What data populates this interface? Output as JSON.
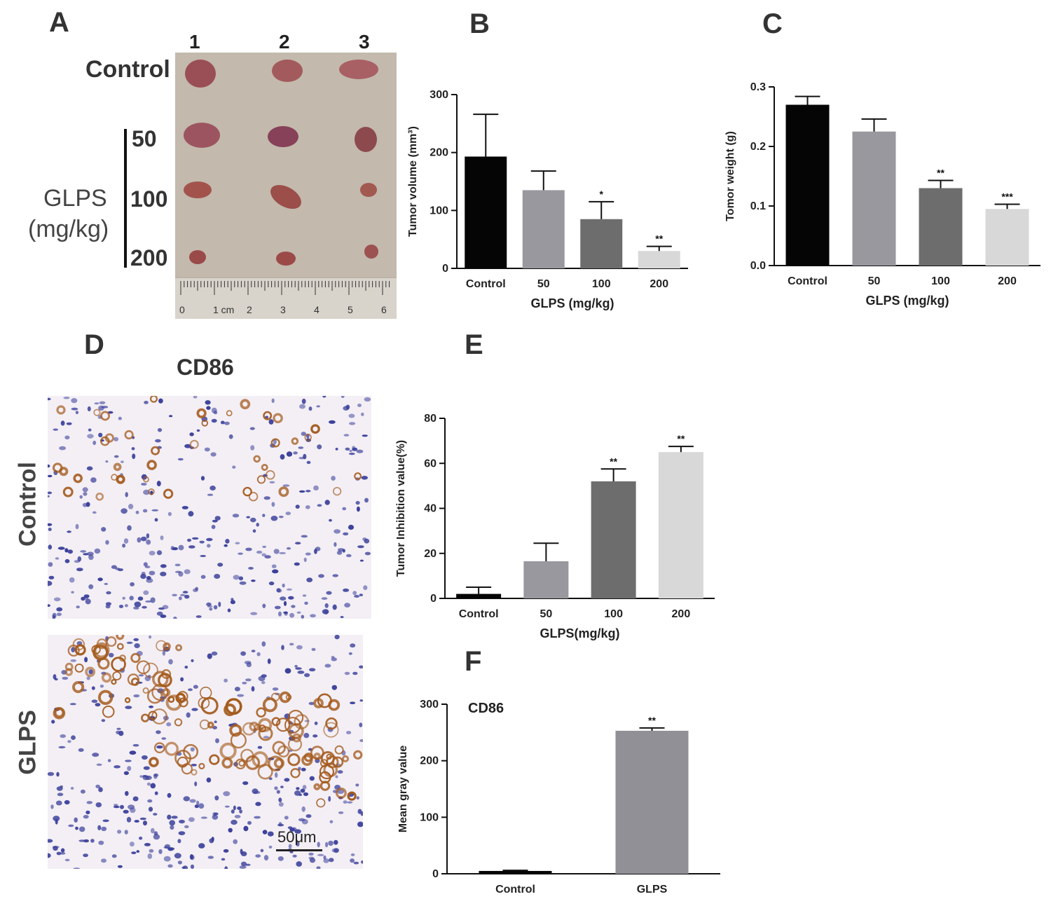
{
  "panels": {
    "a": "A",
    "b": "B",
    "c": "C",
    "d": "D",
    "e": "E",
    "f": "F"
  },
  "panel_a": {
    "columns": [
      "1",
      "2",
      "3"
    ],
    "row_control": "Control",
    "group_label_1": "GLPS",
    "group_label_2": "(mg/kg)",
    "doses": [
      "50",
      "100",
      "200"
    ],
    "ruler_numbers": [
      "0",
      "1 cm",
      "2",
      "3",
      "4",
      "5",
      "6"
    ]
  },
  "panel_d": {
    "title": "CD86",
    "row_labels": [
      "Control",
      "GLPS"
    ],
    "scale_bar": "50μm"
  },
  "colors": {
    "control": "#050505",
    "d50": "#98989e",
    "d100": "#6d6d6d",
    "d200": "#d8d8d8",
    "glps_f": "#909096",
    "tissue_bg": "#f3eff5",
    "nuclei": "#3a3f9a",
    "stain": "#a45a1c"
  },
  "chart_data": [
    {
      "id": "B",
      "type": "bar",
      "categories": [
        "Control",
        "50",
        "100",
        "200"
      ],
      "values": [
        193,
        135,
        85,
        30
      ],
      "errors": [
        73,
        33,
        30,
        8
      ],
      "significance": [
        "",
        "",
        "*",
        "**"
      ],
      "ylabel": "Tumor  volume (mm³)",
      "xlabel": "GLPS (mg/kg)",
      "yticks": [
        "0",
        "100",
        "200",
        "300"
      ],
      "ylim": [
        0,
        300
      ]
    },
    {
      "id": "C",
      "type": "bar",
      "categories": [
        "Control",
        "50",
        "100",
        "200"
      ],
      "values": [
        0.27,
        0.225,
        0.13,
        0.095
      ],
      "errors": [
        0.014,
        0.021,
        0.013,
        0.008
      ],
      "significance": [
        "",
        "",
        "**",
        "***"
      ],
      "ylabel": "Tomor weight (g)",
      "xlabel": "GLPS (mg/kg)",
      "yticks": [
        "0.0",
        "0.1",
        "0.2",
        "0.3"
      ],
      "ylim": [
        0,
        0.3
      ]
    },
    {
      "id": "E",
      "type": "bar",
      "categories": [
        "Control",
        "50",
        "100",
        "200"
      ],
      "values": [
        2,
        16.5,
        52,
        65
      ],
      "errors": [
        3,
        8,
        5.5,
        2.5
      ],
      "significance": [
        "",
        "",
        "**",
        "**"
      ],
      "ylabel": "Tumor Inhibition value(%)",
      "xlabel": "GLPS(mg/kg)",
      "yticks": [
        "0",
        "20",
        "40",
        "60",
        "80"
      ],
      "ylim": [
        0,
        80
      ]
    },
    {
      "id": "F",
      "type": "bar",
      "title": "CD86",
      "categories": [
        "Control",
        "GLPS"
      ],
      "values": [
        5,
        253
      ],
      "errors": [
        1,
        5
      ],
      "significance": [
        "",
        "**"
      ],
      "ylabel": "Mean gray value",
      "xlabel": "",
      "yticks": [
        "0",
        "100",
        "200",
        "300"
      ],
      "ylim": [
        0,
        300
      ]
    }
  ]
}
